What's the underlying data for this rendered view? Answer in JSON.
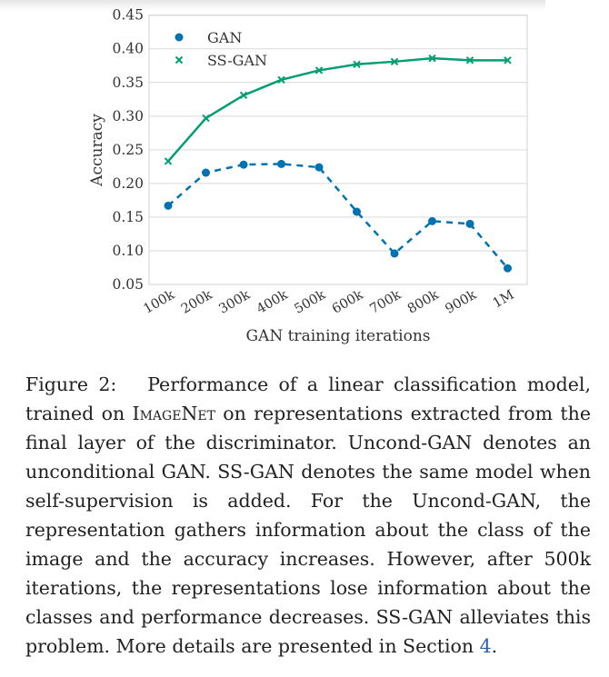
{
  "chart_data": {
    "type": "line",
    "xlabel": "GAN training iterations",
    "ylabel": "Accuracy",
    "categories": [
      "100k",
      "200k",
      "300k",
      "400k",
      "500k",
      "600k",
      "700k",
      "800k",
      "900k",
      "1M"
    ],
    "yticks": [
      "0.05",
      "0.10",
      "0.15",
      "0.20",
      "0.25",
      "0.30",
      "0.35",
      "0.40",
      "0.45"
    ],
    "ylim": [
      0.05,
      0.45
    ],
    "grid": true,
    "legend": "top-left",
    "series": [
      {
        "name": "GAN",
        "marker": "circle",
        "style": "dashed",
        "color": "#0072b2",
        "values": [
          0.167,
          0.216,
          0.228,
          0.229,
          0.224,
          0.158,
          0.096,
          0.144,
          0.14,
          0.074
        ]
      },
      {
        "name": "SS-GAN",
        "marker": "x",
        "style": "solid",
        "color": "#009e73",
        "values": [
          0.233,
          0.297,
          0.331,
          0.354,
          0.368,
          0.377,
          0.381,
          0.386,
          0.383,
          0.383
        ]
      }
    ]
  },
  "caption": {
    "label": "Figure 2:",
    "part1": "Performance of a linear classification model, trained on",
    "dataset": "ImageNet",
    "part2": "on representations extracted from the final layer of the discriminator. Uncond-GAN denotes an unconditional GAN. SS-GAN denotes the same model when self-supervision is added. For the Uncond-GAN, the representation gathers information about the class of the image and the accuracy increases.  However, after 500k iterations, the representations lose information about the classes and performance decreases. SS-GAN alleviates this problem. More details are presented in Section",
    "section_ref": "4",
    "end": "."
  }
}
